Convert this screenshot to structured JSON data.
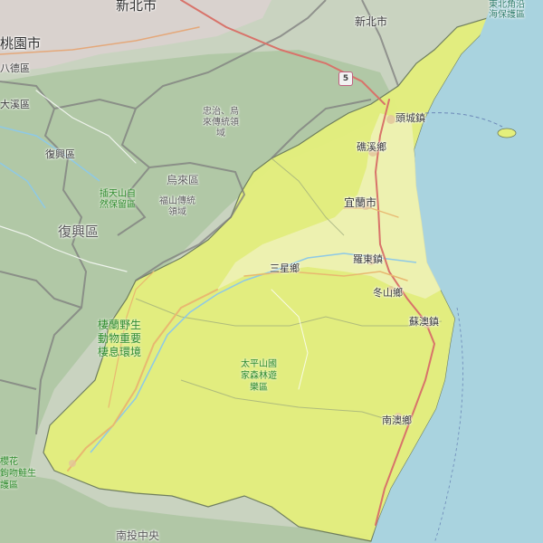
{
  "map": {
    "labels": {
      "xinbei_city_top": "新北市",
      "xinbei_city_east": "新北市",
      "taoyuan": "桃園市",
      "bade": "八德區",
      "daxi": "大溪區",
      "fuxing_small": "復興區",
      "fuxing_big": "復興區",
      "wulai": "烏來區",
      "ne_cape": "東北角沿\n海保護區",
      "wulai_heritage": "忠治、烏\n來傳統領\n域",
      "lala_mountain": "插天山自\n然保留區",
      "fushan_heritage": "福山傳統\n領域",
      "toucheng": "頭城鎮",
      "jiaoxi": "礁溪鄉",
      "yilan": "宜蘭市",
      "luodong": "羅東鎮",
      "sanxing": "三星鄉",
      "dongshan": "冬山鄉",
      "suao": "蘇澳鎮",
      "nanao": "南澳鄉",
      "wildlife": "棲蘭野生\n動物重要\n棲息環境",
      "taipingshan": "太平山國\n家森林遊\n樂區",
      "lower_left": "櫻花\n鉤吻鮭生\n護區",
      "bottom": "南投中央"
    },
    "highway_shield": "5",
    "icons": [
      "island-guishan",
      "highway-shield"
    ]
  }
}
